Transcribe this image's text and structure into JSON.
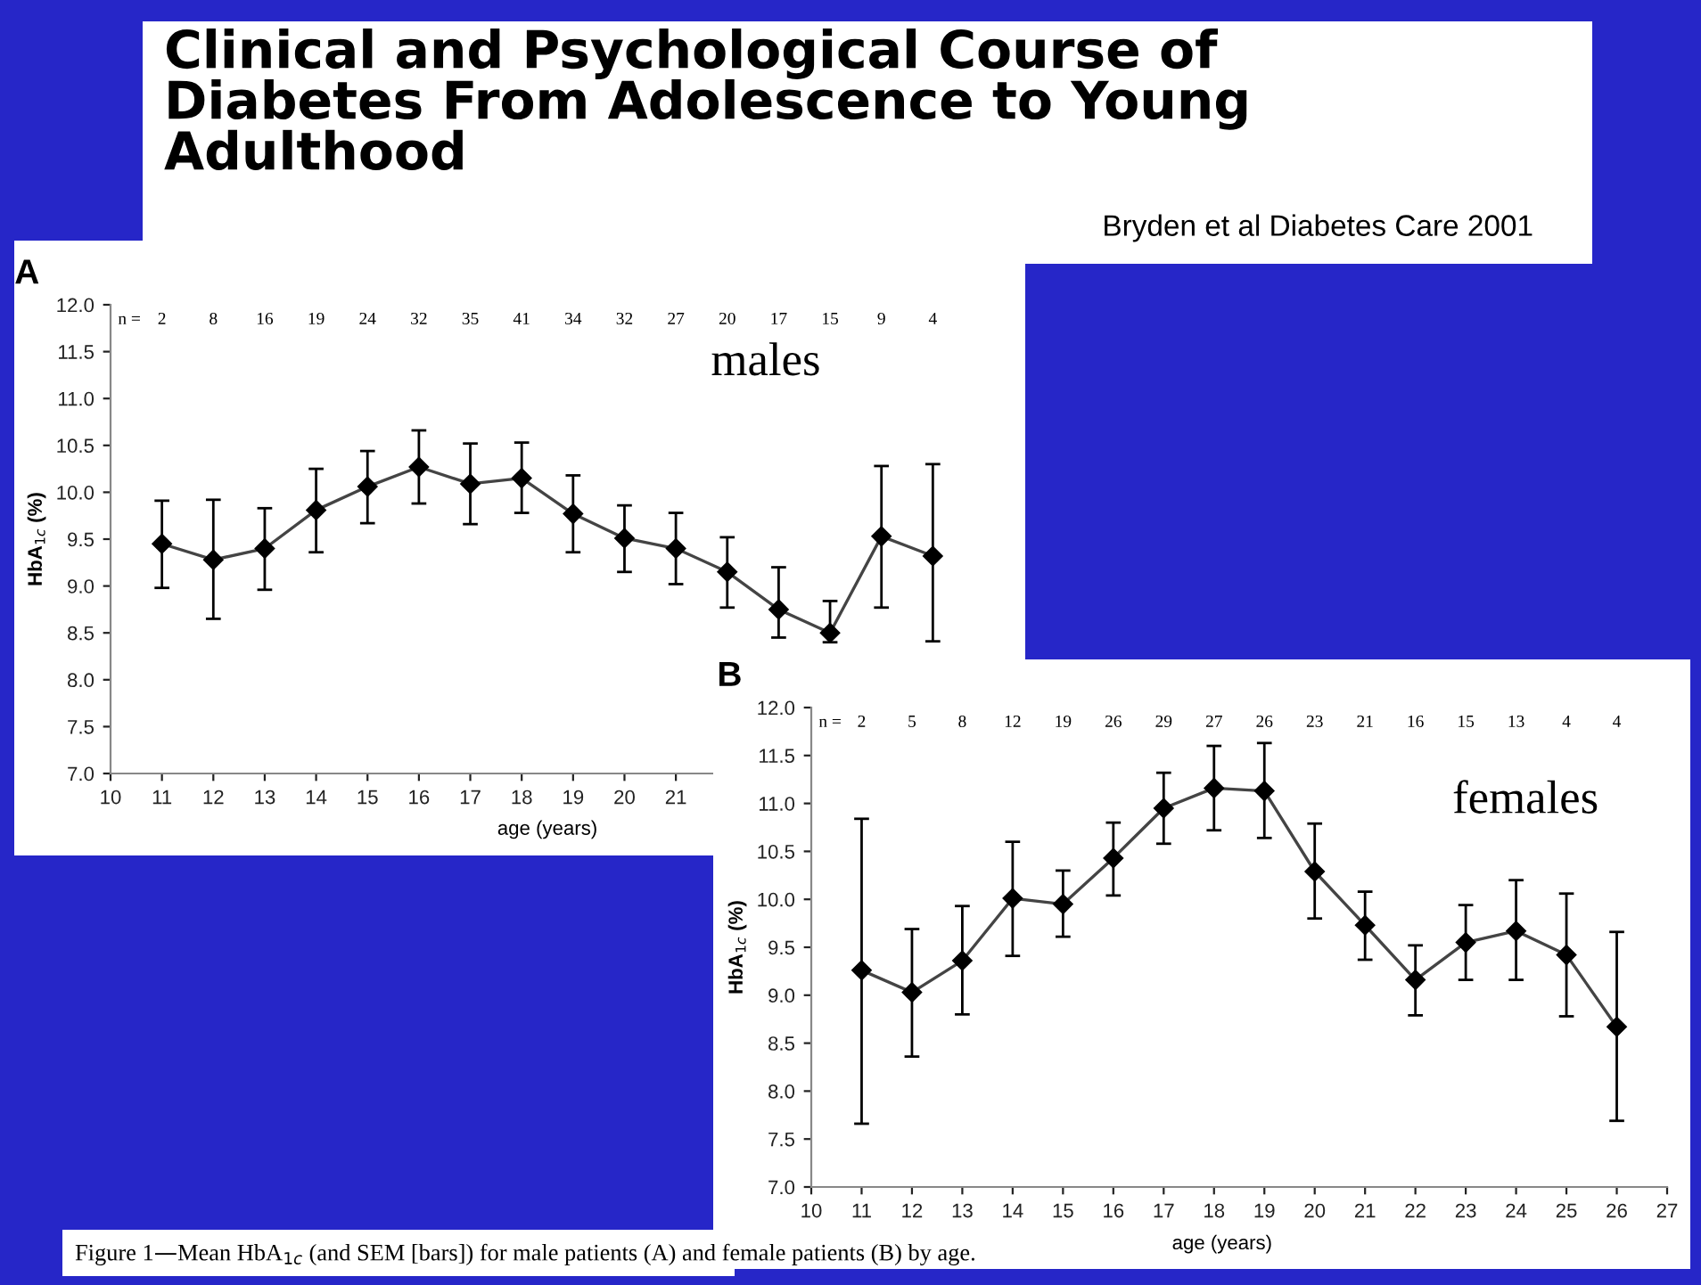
{
  "chart_data": [
    {
      "type": "line",
      "annotations": [
        "A",
        "males",
        "n =",
        "2",
        "8",
        "16",
        "19",
        "24",
        "32",
        "35",
        "41",
        "34",
        "32",
        "27",
        "20",
        "17",
        "15",
        "9",
        "4",
        "Clinical and Psychological Course of\nDiabetes From Adolescence to Young\nAdulthood",
        "Bryden et al Diabetes Care 2001"
      ],
      "x": [
        11,
        12,
        13,
        14,
        15,
        16,
        17,
        18,
        19,
        20,
        21,
        22,
        23,
        24,
        25,
        26
      ],
      "series": [
        {
          "color": "#000000",
          "values": [
            9.45,
            9.28,
            9.4,
            9.81,
            10.06,
            10.27,
            10.09,
            10.15,
            9.77,
            9.51,
            9.4,
            9.15,
            8.75,
            8.5,
            9.53,
            9.32
          ],
          "errors": [
            [
              8.98,
              9.91
            ],
            [
              8.65,
              9.92
            ],
            [
              8.96,
              9.83
            ],
            [
              9.36,
              10.25
            ],
            [
              9.67,
              10.44
            ],
            [
              9.88,
              10.66
            ],
            [
              9.66,
              10.52
            ],
            [
              9.78,
              10.53
            ],
            [
              9.36,
              10.18
            ],
            [
              9.15,
              9.86
            ],
            [
              9.02,
              9.78
            ],
            [
              8.77,
              9.52
            ],
            [
              8.45,
              9.2
            ],
            [
              8.4,
              8.84
            ],
            [
              8.77,
              10.28
            ],
            [
              8.41,
              10.3
            ]
          ]
        }
      ],
      "ylabel": "HbA$_{1c}$ (%)",
      "xlabel": "age (years)",
      "xlim": [
        10,
        27
      ],
      "xticks": [
        10,
        11,
        12,
        13,
        14,
        15,
        16,
        17,
        18,
        19,
        20,
        21
      ],
      "ylim": [
        7.0,
        12.0
      ],
      "yticks": [
        {
          "value": 7.0,
          "label": "7.0"
        },
        {
          "value": 7.5,
          "label": "7.5"
        },
        {
          "value": 8.0,
          "label": "8.0"
        },
        {
          "value": 8.5,
          "label": "8.5"
        },
        {
          "value": 9.0,
          "label": "9.0"
        },
        {
          "value": 9.5,
          "label": "9.5"
        },
        {
          "value": 10.0,
          "label": "10.0"
        },
        {
          "value": 10.5,
          "label": "10.5"
        },
        {
          "value": 11.0,
          "label": "11.0"
        },
        {
          "value": 11.5,
          "label": "11.5"
        },
        {
          "value": 12.0,
          "label": "12.0"
        }
      ],
      "marker": "diamond",
      "line_style": "solid",
      "grid": false,
      "legend": false
    },
    {
      "type": "line",
      "annotations": [
        "B",
        "females",
        "n =",
        "2",
        "5",
        "8",
        "12",
        "19",
        "26",
        "29",
        "27",
        "26",
        "23",
        "21",
        "16",
        "15",
        "13",
        "4",
        "4",
        "Figure 1—Mean HbA$_{1c}$ (and SEM [bars]) for male patients (A) and female patients (B) by age."
      ],
      "x": [
        11,
        12,
        13,
        14,
        15,
        16,
        17,
        18,
        19,
        20,
        21,
        22,
        23,
        24,
        25,
        26
      ],
      "series": [
        {
          "color": "#000000",
          "values": [
            9.26,
            9.03,
            9.36,
            10.01,
            9.95,
            10.43,
            10.95,
            11.16,
            11.13,
            10.29,
            9.73,
            9.16,
            9.55,
            9.67,
            9.42,
            8.67
          ],
          "errors": [
            [
              7.66,
              10.84
            ],
            [
              8.36,
              9.69
            ],
            [
              8.8,
              9.93
            ],
            [
              9.41,
              10.6
            ],
            [
              9.61,
              10.3
            ],
            [
              10.04,
              10.8
            ],
            [
              10.58,
              11.32
            ],
            [
              10.72,
              11.6
            ],
            [
              10.64,
              11.63
            ],
            [
              9.8,
              10.79
            ],
            [
              9.37,
              10.08
            ],
            [
              8.79,
              9.52
            ],
            [
              9.16,
              9.94
            ],
            [
              9.16,
              10.2
            ],
            [
              8.78,
              10.06
            ],
            [
              7.69,
              9.66
            ]
          ]
        }
      ],
      "ylabel": "HbA$_{1c}$ (%)",
      "xlabel": "age (years)",
      "xlim": [
        10,
        27
      ],
      "xticks": [
        10,
        11,
        12,
        13,
        14,
        15,
        16,
        17,
        18,
        19,
        20,
        21,
        22,
        23,
        24,
        25,
        26,
        27
      ],
      "ylim": [
        7.0,
        12.0
      ],
      "yticks": [
        {
          "value": 7.0,
          "label": "7.0"
        },
        {
          "value": 7.5,
          "label": "7.5"
        },
        {
          "value": 8.0,
          "label": "8.0"
        },
        {
          "value": 8.5,
          "label": "8.5"
        },
        {
          "value": 9.0,
          "label": "9.0"
        },
        {
          "value": 9.5,
          "label": "9.5"
        },
        {
          "value": 10.0,
          "label": "10.0"
        },
        {
          "value": 10.5,
          "label": "10.5"
        },
        {
          "value": 11.0,
          "label": "11.0"
        },
        {
          "value": 11.5,
          "label": "11.5"
        },
        {
          "value": 12.0,
          "label": "12.0"
        }
      ],
      "marker": "diamond",
      "line_style": "solid",
      "grid": false,
      "legend": false
    }
  ]
}
